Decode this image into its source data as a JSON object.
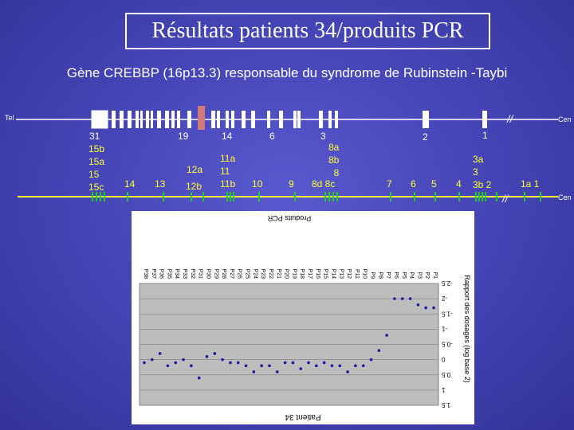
{
  "slide": {
    "title": "Résultats patients 34/produits PCR",
    "subtitle": "Gène CREBBP (16p13.3) responsable du syndrome de Rubinstein -Taybi"
  },
  "side_labels": {
    "tel": "Tel",
    "cen_top": "Cen",
    "cen_bottom": "Cen"
  },
  "exon_labels_top": [
    "31",
    "19",
    "14",
    "6",
    "3",
    "2",
    "1"
  ],
  "exon_labels_bottom": [
    "15b\n15a\n15\n15c",
    "14",
    "13",
    "12a",
    "12b",
    "11a\n11\n11b",
    "10",
    "9",
    "8a\n8b\n8",
    "8d 8c",
    "7",
    "6",
    "5",
    "4",
    "3a\n3\n3b 2",
    "1a 1"
  ],
  "break_mark": "//",
  "chart_data": {
    "type": "scatter",
    "title": "Patient 34",
    "orientation": "rotated-180",
    "xlabel": "Produits PCR",
    "ylabel": "Rapport des dosages (log base 2)",
    "yticks": [
      "1.5",
      "1",
      "0.5",
      "0",
      "-0.5",
      "-1",
      "-1.5",
      "-2",
      "-2.5"
    ],
    "ylim": [
      -2.5,
      1.5
    ],
    "categories": [
      "P1",
      "P2",
      "P3",
      "P4",
      "P5",
      "P6",
      "P7",
      "P8",
      "P9",
      "P10",
      "P11",
      "P12",
      "P13",
      "P14",
      "P15",
      "P16",
      "P17",
      "P18",
      "P19",
      "P20",
      "P21",
      "P22",
      "P23",
      "P24",
      "P25",
      "P26",
      "P27",
      "P28",
      "P29",
      "P30",
      "P31",
      "P32",
      "P33",
      "P34",
      "P35",
      "P36",
      "P37",
      "P38"
    ],
    "values": [
      -1.7,
      -1.7,
      -1.8,
      -2.0,
      -2.0,
      -2.0,
      -0.8,
      -0.3,
      0.0,
      0.2,
      0.2,
      0.4,
      0.2,
      0.2,
      0.1,
      0.2,
      0.1,
      0.3,
      0.1,
      0.1,
      0.4,
      0.2,
      0.2,
      0.4,
      0.2,
      0.1,
      0.1,
      0.0,
      -0.2,
      -0.1,
      0.6,
      0.2,
      0.0,
      0.1,
      0.2,
      -0.2,
      0.0,
      0.1
    ],
    "grid": true
  },
  "colors": {
    "background": "#4646b8",
    "chrom_line": "#ffffff",
    "exon_box": "#ffffff",
    "highlight_exon": "#d27a7a",
    "yellow_line": "#ffff33",
    "pcr_tick": "#22cc22",
    "plot_bg": "#bdbdbd",
    "point": "#1a1aa0"
  }
}
